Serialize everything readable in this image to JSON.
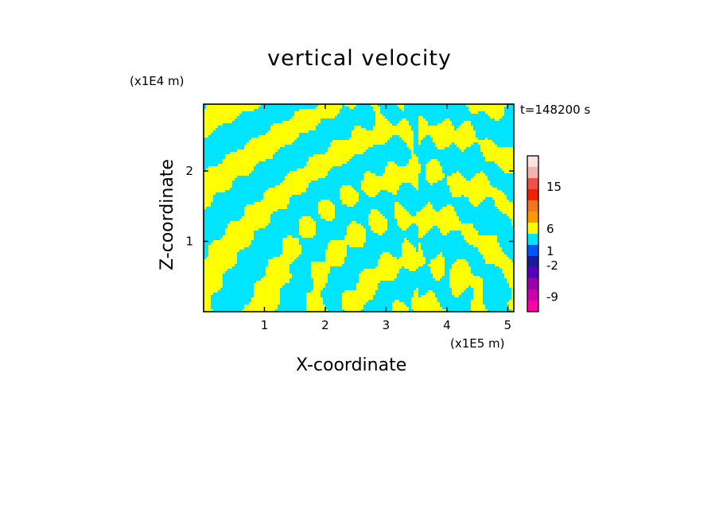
{
  "chart_data": {
    "type": "heatmap",
    "title": "vertical velocity",
    "xlabel": "X-coordinate",
    "ylabel": "Z-coordinate",
    "x_unit": "(x1E5 m)",
    "y_unit": "(x1E4 m)",
    "time_label": "t=148200 s",
    "x_ticks": [
      "1",
      "2",
      "3",
      "4",
      "5"
    ],
    "y_ticks": [
      "1",
      "2"
    ],
    "xlim": [
      0,
      5.1
    ],
    "ylim": [
      0,
      2.95
    ],
    "field_colors": {
      "positive": "#ffff00",
      "negative": "#00e5ff"
    },
    "colorbar": {
      "tick_labels": [
        "15",
        "6",
        "1",
        "-2",
        "-9"
      ],
      "tick_values": [
        15,
        6,
        1,
        -2,
        -9
      ],
      "bands": [
        {
          "color": "#fde2de"
        },
        {
          "color": "#f4b3b0"
        },
        {
          "color": "#f0504a"
        },
        {
          "color": "#ee2200"
        },
        {
          "color": "#f0781c"
        },
        {
          "color": "#ff9900"
        },
        {
          "color": "#ffff00"
        },
        {
          "color": "#00e5ff"
        },
        {
          "color": "#0055ff"
        },
        {
          "color": "#1a1a9a"
        },
        {
          "color": "#5500bb"
        },
        {
          "color": "#9900aa"
        },
        {
          "color": "#cc00aa"
        },
        {
          "color": "#ff00aa"
        }
      ]
    }
  }
}
